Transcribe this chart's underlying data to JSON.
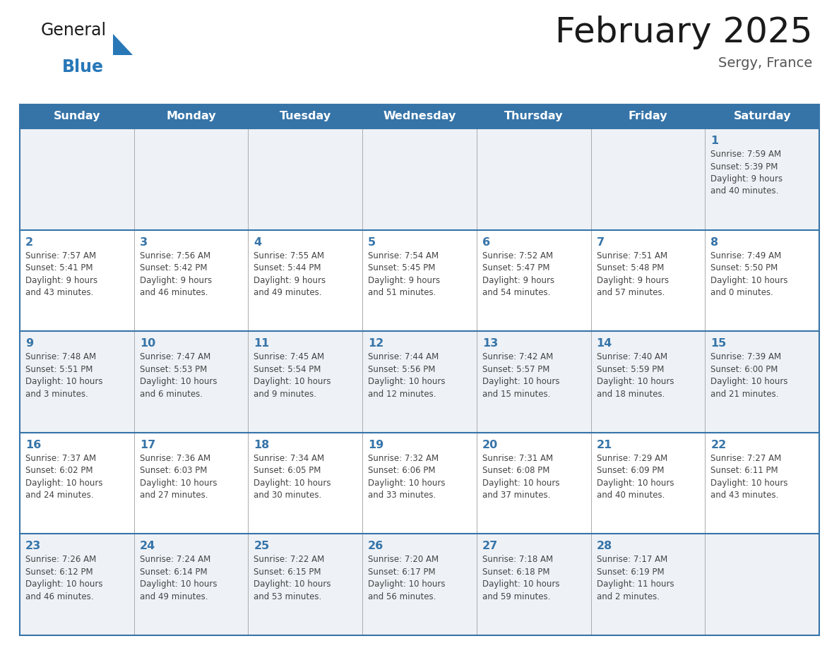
{
  "title": "February 2025",
  "subtitle": "Sergy, France",
  "header_bg": "#3674a8",
  "header_text_color": "#ffffff",
  "cell_bg_odd": "#eef2f7",
  "cell_bg_even": "#ffffff",
  "border_color": "#3674a8",
  "grid_color": "#aaaaaa",
  "days_of_week": [
    "Sunday",
    "Monday",
    "Tuesday",
    "Wednesday",
    "Thursday",
    "Friday",
    "Saturday"
  ],
  "day_number_color": "#3674a8",
  "text_color": "#444444",
  "logo_general_color": "#1a1a1a",
  "logo_blue_color": "#2878b8",
  "calendar_data": [
    [
      {
        "day": null,
        "sunrise": null,
        "sunset": null,
        "daylight": null
      },
      {
        "day": null,
        "sunrise": null,
        "sunset": null,
        "daylight": null
      },
      {
        "day": null,
        "sunrise": null,
        "sunset": null,
        "daylight": null
      },
      {
        "day": null,
        "sunrise": null,
        "sunset": null,
        "daylight": null
      },
      {
        "day": null,
        "sunrise": null,
        "sunset": null,
        "daylight": null
      },
      {
        "day": null,
        "sunrise": null,
        "sunset": null,
        "daylight": null
      },
      {
        "day": 1,
        "sunrise": "7:59 AM",
        "sunset": "5:39 PM",
        "daylight": "9 hours\nand 40 minutes."
      }
    ],
    [
      {
        "day": 2,
        "sunrise": "7:57 AM",
        "sunset": "5:41 PM",
        "daylight": "9 hours\nand 43 minutes."
      },
      {
        "day": 3,
        "sunrise": "7:56 AM",
        "sunset": "5:42 PM",
        "daylight": "9 hours\nand 46 minutes."
      },
      {
        "day": 4,
        "sunrise": "7:55 AM",
        "sunset": "5:44 PM",
        "daylight": "9 hours\nand 49 minutes."
      },
      {
        "day": 5,
        "sunrise": "7:54 AM",
        "sunset": "5:45 PM",
        "daylight": "9 hours\nand 51 minutes."
      },
      {
        "day": 6,
        "sunrise": "7:52 AM",
        "sunset": "5:47 PM",
        "daylight": "9 hours\nand 54 minutes."
      },
      {
        "day": 7,
        "sunrise": "7:51 AM",
        "sunset": "5:48 PM",
        "daylight": "9 hours\nand 57 minutes."
      },
      {
        "day": 8,
        "sunrise": "7:49 AM",
        "sunset": "5:50 PM",
        "daylight": "10 hours\nand 0 minutes."
      }
    ],
    [
      {
        "day": 9,
        "sunrise": "7:48 AM",
        "sunset": "5:51 PM",
        "daylight": "10 hours\nand 3 minutes."
      },
      {
        "day": 10,
        "sunrise": "7:47 AM",
        "sunset": "5:53 PM",
        "daylight": "10 hours\nand 6 minutes."
      },
      {
        "day": 11,
        "sunrise": "7:45 AM",
        "sunset": "5:54 PM",
        "daylight": "10 hours\nand 9 minutes."
      },
      {
        "day": 12,
        "sunrise": "7:44 AM",
        "sunset": "5:56 PM",
        "daylight": "10 hours\nand 12 minutes."
      },
      {
        "day": 13,
        "sunrise": "7:42 AM",
        "sunset": "5:57 PM",
        "daylight": "10 hours\nand 15 minutes."
      },
      {
        "day": 14,
        "sunrise": "7:40 AM",
        "sunset": "5:59 PM",
        "daylight": "10 hours\nand 18 minutes."
      },
      {
        "day": 15,
        "sunrise": "7:39 AM",
        "sunset": "6:00 PM",
        "daylight": "10 hours\nand 21 minutes."
      }
    ],
    [
      {
        "day": 16,
        "sunrise": "7:37 AM",
        "sunset": "6:02 PM",
        "daylight": "10 hours\nand 24 minutes."
      },
      {
        "day": 17,
        "sunrise": "7:36 AM",
        "sunset": "6:03 PM",
        "daylight": "10 hours\nand 27 minutes."
      },
      {
        "day": 18,
        "sunrise": "7:34 AM",
        "sunset": "6:05 PM",
        "daylight": "10 hours\nand 30 minutes."
      },
      {
        "day": 19,
        "sunrise": "7:32 AM",
        "sunset": "6:06 PM",
        "daylight": "10 hours\nand 33 minutes."
      },
      {
        "day": 20,
        "sunrise": "7:31 AM",
        "sunset": "6:08 PM",
        "daylight": "10 hours\nand 37 minutes."
      },
      {
        "day": 21,
        "sunrise": "7:29 AM",
        "sunset": "6:09 PM",
        "daylight": "10 hours\nand 40 minutes."
      },
      {
        "day": 22,
        "sunrise": "7:27 AM",
        "sunset": "6:11 PM",
        "daylight": "10 hours\nand 43 minutes."
      }
    ],
    [
      {
        "day": 23,
        "sunrise": "7:26 AM",
        "sunset": "6:12 PM",
        "daylight": "10 hours\nand 46 minutes."
      },
      {
        "day": 24,
        "sunrise": "7:24 AM",
        "sunset": "6:14 PM",
        "daylight": "10 hours\nand 49 minutes."
      },
      {
        "day": 25,
        "sunrise": "7:22 AM",
        "sunset": "6:15 PM",
        "daylight": "10 hours\nand 53 minutes."
      },
      {
        "day": 26,
        "sunrise": "7:20 AM",
        "sunset": "6:17 PM",
        "daylight": "10 hours\nand 56 minutes."
      },
      {
        "day": 27,
        "sunrise": "7:18 AM",
        "sunset": "6:18 PM",
        "daylight": "10 hours\nand 59 minutes."
      },
      {
        "day": 28,
        "sunrise": "7:17 AM",
        "sunset": "6:19 PM",
        "daylight": "11 hours\nand 2 minutes."
      },
      {
        "day": null,
        "sunrise": null,
        "sunset": null,
        "daylight": null
      }
    ]
  ]
}
